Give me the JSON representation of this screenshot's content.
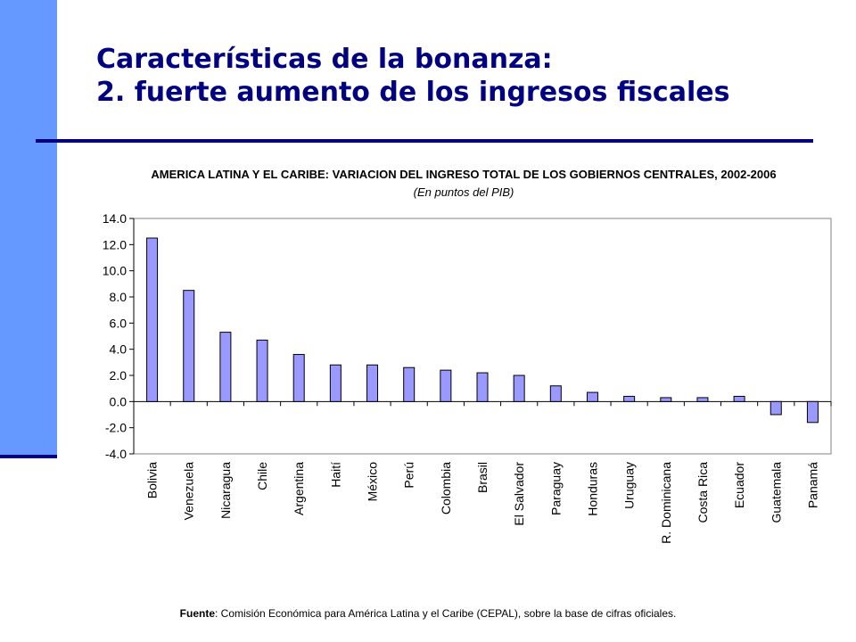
{
  "slide": {
    "title_line1": "Características de la bonanza:",
    "title_line2": "2. fuerte aumento de los ingresos fiscales",
    "accent_color": "#6699ff",
    "title_color": "#000080"
  },
  "source": {
    "label": "Fuente",
    "text": ": Comisión Económica para América Latina y el Caribe (CEPAL), sobre la base de cifras oficiales."
  },
  "chart_data": {
    "type": "bar",
    "title": "AMERICA LATINA Y EL CARIBE: VARIACION DEL INGRESO TOTAL DE LOS GOBIERNOS CENTRALES, 2002-2006",
    "subtitle": "(En puntos del PIB)",
    "xlabel": "",
    "ylabel": "",
    "ylim": [
      -4.0,
      14.0
    ],
    "yticks": [
      "14.0",
      "12.0",
      "10.0",
      "8.0",
      "6.0",
      "4.0",
      "2.0",
      "0.0",
      "-2.0",
      "-4.0"
    ],
    "ytick_values": [
      14,
      12,
      10,
      8,
      6,
      4,
      2,
      0,
      -2,
      -4
    ],
    "grid": false,
    "legend": "none",
    "bar_color": "#9999ff",
    "categories": [
      "Bolivia",
      "Venezuela",
      "Nicaragua",
      "Chile",
      "Argentina",
      "Haití",
      "México",
      "Perú",
      "Colombia",
      "Brasil",
      "El Salvador",
      "Paraguay",
      "Honduras",
      "Uruguay",
      "R. Dominicana",
      "Costa Rica",
      "Ecuador",
      "Guatemala",
      "Panamá"
    ],
    "values": [
      12.5,
      8.5,
      5.3,
      4.7,
      3.6,
      2.8,
      2.8,
      2.6,
      2.4,
      2.2,
      2.0,
      1.2,
      0.7,
      0.4,
      0.3,
      0.3,
      0.4,
      -1.0,
      -1.6
    ]
  }
}
